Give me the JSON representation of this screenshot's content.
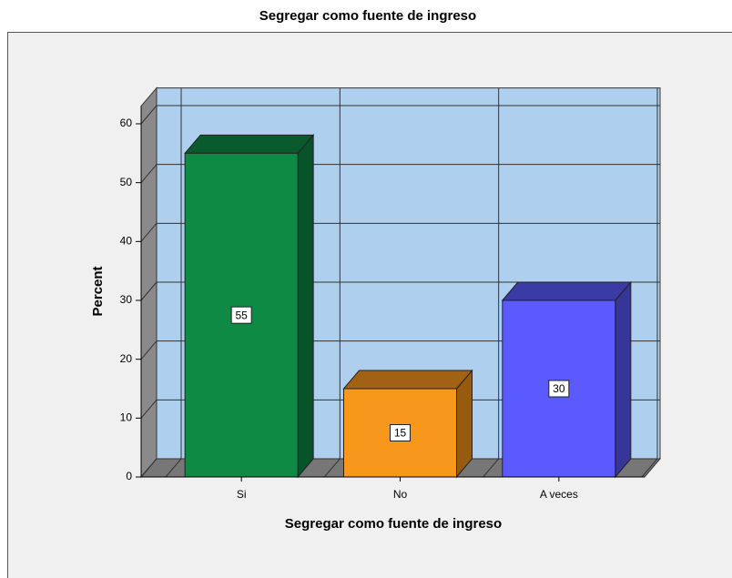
{
  "chart_data": {
    "type": "bar3d",
    "title": "Segregar como fuente de ingreso",
    "x_label": "Segregar como fuente de ingreso",
    "y_label": "Percent",
    "categories": [
      "Si",
      "No",
      "A veces"
    ],
    "values": [
      55,
      15,
      30
    ],
    "colors": [
      "#0e8a44",
      "#f7981d",
      "#5a5aff"
    ],
    "ylim": [
      0,
      63
    ],
    "yticks": [
      0,
      10,
      20,
      30,
      40,
      50,
      60
    ],
    "grid": true
  }
}
